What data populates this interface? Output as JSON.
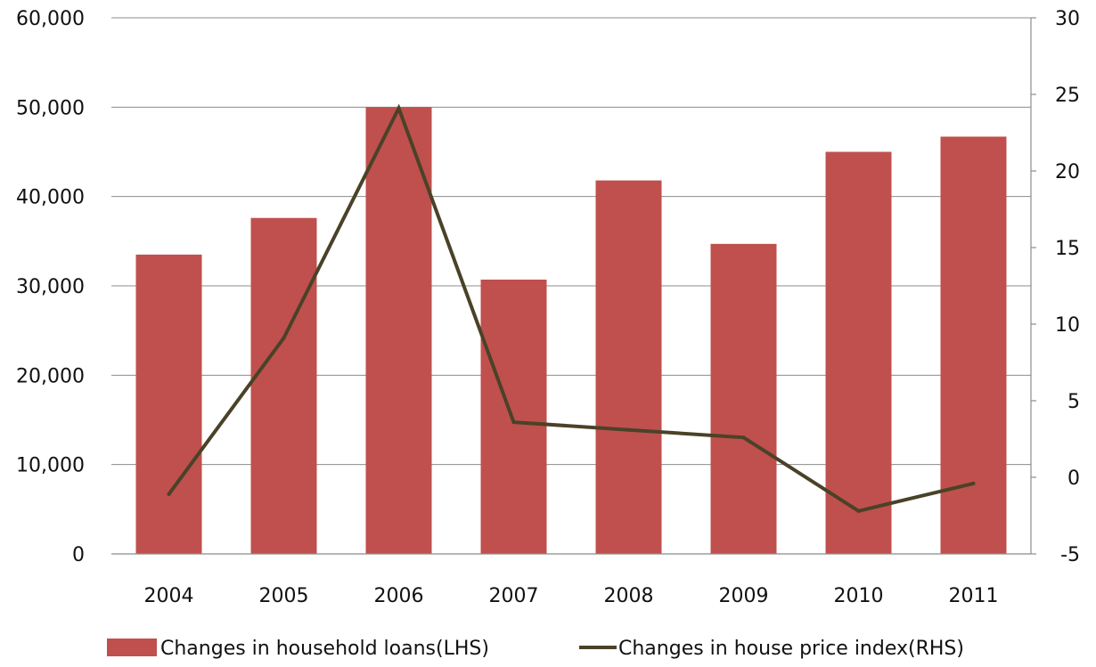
{
  "chart_data": {
    "type": "bar",
    "categories": [
      "2004",
      "2005",
      "2006",
      "2007",
      "2008",
      "2009",
      "2010",
      "2011"
    ],
    "series": [
      {
        "name": "Changes in household loans(LHS)",
        "type": "bar",
        "axis": "left",
        "color": "#c0504d",
        "values": [
          33500,
          37600,
          50000,
          30700,
          41800,
          34700,
          45000,
          46700
        ]
      },
      {
        "name": "Changes in house price index(RHS)",
        "type": "line",
        "axis": "right",
        "color": "#4a4228",
        "values": [
          -1.1,
          9.1,
          24.1,
          3.6,
          3.1,
          2.6,
          -2.2,
          -0.4
        ]
      }
    ],
    "left_axis": {
      "ylim": [
        0,
        60000
      ],
      "ticks": [
        0,
        10000,
        20000,
        30000,
        40000,
        50000,
        60000
      ],
      "tick_labels": [
        "0",
        "10,000",
        "20,000",
        "30,000",
        "40,000",
        "50,000",
        "60,000"
      ]
    },
    "right_axis": {
      "ylim": [
        -5,
        30
      ],
      "ticks": [
        -5,
        0,
        5,
        10,
        15,
        20,
        25,
        30
      ],
      "tick_labels": [
        "-5",
        "0",
        "5",
        "10",
        "15",
        "20",
        "25",
        "30"
      ]
    },
    "grid": "horizontal",
    "legend": {
      "position": "bottom"
    },
    "title": "",
    "xlabel": "",
    "ylabel": ""
  }
}
